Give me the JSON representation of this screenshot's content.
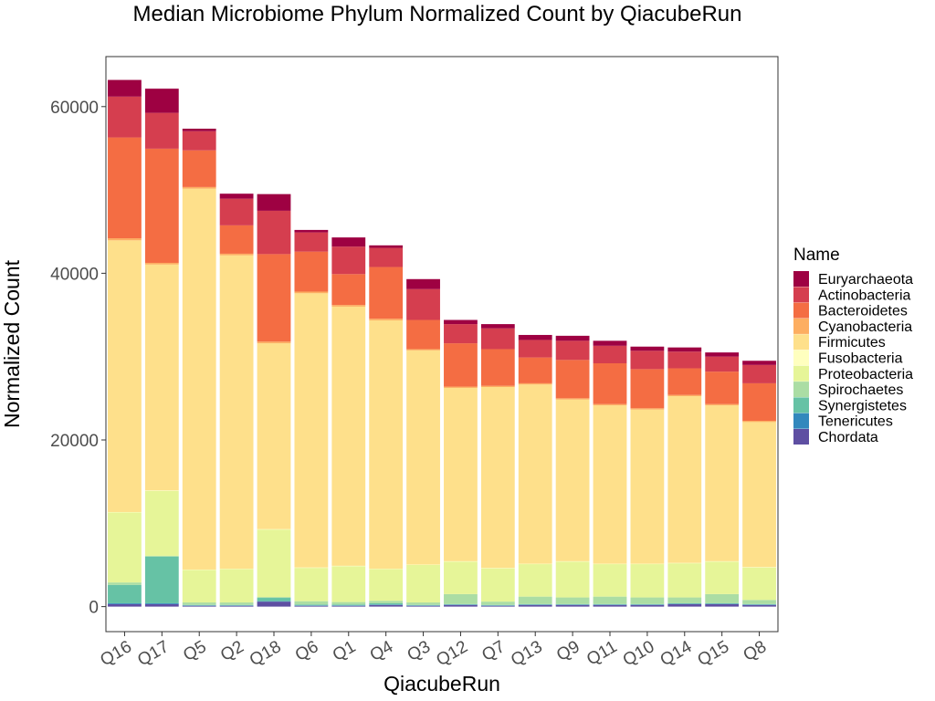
{
  "chart_data": {
    "type": "bar",
    "stacked": true,
    "title": "Median Microbiome Phylum Normalized Count by QiacubeRun",
    "xlabel": "QiacubeRun",
    "ylabel": "Normalized Count",
    "ylim": [
      -3000,
      66000
    ],
    "yticks": [
      0,
      20000,
      40000,
      60000
    ],
    "ytick_labels": [
      "0",
      "20000",
      "40000",
      "60000"
    ],
    "grid": false,
    "legend": {
      "title": "Name",
      "position": "right"
    },
    "categories": [
      "Q16",
      "Q17",
      "Q5",
      "Q2",
      "Q18",
      "Q6",
      "Q1",
      "Q4",
      "Q3",
      "Q12",
      "Q7",
      "Q13",
      "Q9",
      "Q11",
      "Q10",
      "Q14",
      "Q15",
      "Q8"
    ],
    "series": [
      {
        "name": "Chordata",
        "color": "#5e4fa2",
        "values": [
          300,
          300,
          100,
          100,
          600,
          100,
          100,
          200,
          100,
          200,
          100,
          200,
          200,
          200,
          200,
          300,
          300,
          200
        ]
      },
      {
        "name": "Tenericutes",
        "color": "#3288bd",
        "values": [
          100,
          100,
          50,
          50,
          50,
          50,
          50,
          50,
          50,
          50,
          50,
          50,
          50,
          50,
          50,
          50,
          50,
          50
        ]
      },
      {
        "name": "Synergistetes",
        "color": "#66c2a5",
        "values": [
          2200,
          5600,
          50,
          50,
          400,
          100,
          100,
          150,
          50,
          50,
          50,
          50,
          50,
          50,
          50,
          50,
          50,
          50
        ]
      },
      {
        "name": "Spirochaetes",
        "color": "#abdda4",
        "values": [
          300,
          100,
          300,
          300,
          100,
          400,
          300,
          300,
          300,
          1200,
          400,
          900,
          800,
          900,
          800,
          700,
          1100,
          500
        ]
      },
      {
        "name": "Proteobacteria",
        "color": "#e6f598",
        "values": [
          8400,
          7800,
          3900,
          4000,
          8100,
          4000,
          4300,
          3800,
          4500,
          3900,
          4000,
          3900,
          4300,
          3900,
          4000,
          4100,
          3900,
          3900
        ]
      },
      {
        "name": "Fusobacteria",
        "color": "#ffffbf",
        "values": [
          50,
          50,
          50,
          50,
          50,
          50,
          50,
          50,
          50,
          50,
          50,
          50,
          50,
          50,
          50,
          50,
          50,
          50
        ]
      },
      {
        "name": "Firmicutes",
        "color": "#fee08b",
        "values": [
          32600,
          27100,
          45700,
          37600,
          22300,
          32900,
          31100,
          29800,
          25700,
          20800,
          21700,
          21500,
          19400,
          19000,
          18500,
          20000,
          18700,
          17400
        ]
      },
      {
        "name": "Cyanobacteria",
        "color": "#fdae61",
        "values": [
          250,
          200,
          200,
          200,
          200,
          200,
          200,
          200,
          150,
          150,
          150,
          150,
          150,
          150,
          150,
          150,
          150,
          150
        ]
      },
      {
        "name": "Bacteroidetes",
        "color": "#f46d43",
        "values": [
          12100,
          13700,
          4400,
          3400,
          10500,
          4800,
          3700,
          6200,
          3500,
          5200,
          4400,
          3100,
          4600,
          4900,
          4700,
          3200,
          3900,
          4500
        ]
      },
      {
        "name": "Actinobacteria",
        "color": "#d53e4f",
        "values": [
          4900,
          4300,
          2300,
          3200,
          5200,
          2300,
          3300,
          2300,
          3700,
          2300,
          2500,
          2100,
          2300,
          2100,
          2200,
          2000,
          1800,
          2200
        ]
      },
      {
        "name": "Euryarchaeota",
        "color": "#9e0142",
        "values": [
          2000,
          2900,
          300,
          600,
          2000,
          300,
          1100,
          300,
          1200,
          500,
          500,
          600,
          600,
          600,
          500,
          500,
          500,
          500
        ]
      }
    ]
  }
}
